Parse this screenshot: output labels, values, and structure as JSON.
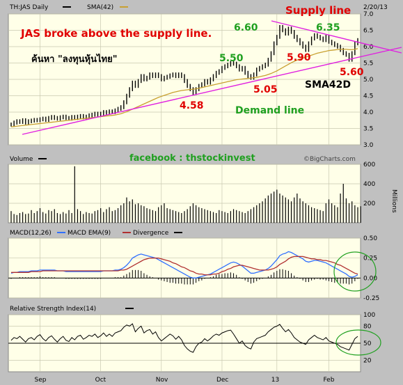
{
  "header": {
    "symbol_label": "TH:JAS Daily",
    "sma_label": "SMA(42)",
    "date": "2/20/13",
    "source": "©BigCharts.com"
  },
  "annotations": {
    "headline": "JAS broke above the supply line.",
    "search_text": "ค้นหา \"ลงทุนหุ้นไทย\"",
    "supply_line": "Supply line",
    "demand_line": "Demand line",
    "sma_note": "SMA42D",
    "facebook": "facebook : thstockinvest",
    "price_labels": [
      "4.58",
      "5.50",
      "5.05",
      "6.60",
      "5.90",
      "6.35",
      "5.60"
    ]
  },
  "colors": {
    "price_bar": "#000000",
    "sma_line": "#c8a030",
    "trend_line": "#e020e0",
    "macd_line": "#3070ff",
    "macd_ema": "#b03030",
    "annotation_red": "#e00000",
    "annotation_green": "#20a020",
    "panel_bg": "#ffffe8"
  },
  "chart_data": [
    {
      "type": "ohlc",
      "name": "price",
      "ylim": [
        3.0,
        7.0
      ],
      "yticks": [
        "7.0",
        "6.5",
        "6.0",
        "5.5",
        "5.0",
        "4.5",
        "4.0",
        "3.5",
        "3.0"
      ],
      "x_labels": [
        "Sep",
        "Oct",
        "Nov",
        "Dec",
        "13",
        "Feb"
      ],
      "close": [
        3.62,
        3.68,
        3.72,
        3.7,
        3.75,
        3.68,
        3.72,
        3.74,
        3.76,
        3.75,
        3.78,
        3.8,
        3.76,
        3.82,
        3.85,
        3.82,
        3.8,
        3.84,
        3.86,
        3.82,
        3.8,
        3.85,
        3.82,
        3.86,
        3.88,
        3.84,
        3.86,
        3.9,
        3.92,
        3.95,
        3.92,
        3.95,
        4.0,
        3.98,
        4.02,
        4.0,
        4.05,
        4.1,
        4.15,
        4.3,
        4.5,
        4.7,
        4.9,
        4.8,
        4.95,
        5.1,
        5.0,
        5.05,
        5.15,
        5.1,
        5.15,
        5.1,
        5.0,
        5.05,
        5.08,
        5.12,
        5.15,
        5.1,
        5.15,
        5.1,
        4.95,
        4.8,
        4.7,
        4.58,
        4.7,
        4.8,
        4.85,
        4.95,
        4.9,
        5.0,
        5.1,
        5.2,
        5.25,
        5.35,
        5.4,
        5.45,
        5.5,
        5.48,
        5.4,
        5.3,
        5.35,
        5.2,
        5.1,
        5.05,
        5.15,
        5.3,
        5.35,
        5.4,
        5.45,
        5.6,
        5.8,
        6.1,
        6.3,
        6.6,
        6.5,
        6.4,
        6.55,
        6.45,
        6.3,
        6.2,
        6.1,
        6.0,
        5.9,
        6.1,
        6.25,
        6.35,
        6.3,
        6.25,
        6.2,
        6.3,
        6.15,
        6.1,
        6.05,
        6.0,
        5.9,
        5.8,
        5.75,
        5.6,
        5.8,
        6.1,
        6.2
      ],
      "sma42": [
        3.55,
        3.56,
        3.57,
        3.58,
        3.59,
        3.6,
        3.61,
        3.62,
        3.63,
        3.64,
        3.65,
        3.66,
        3.67,
        3.68,
        3.69,
        3.7,
        3.71,
        3.72,
        3.73,
        3.74,
        3.75,
        3.76,
        3.77,
        3.78,
        3.79,
        3.8,
        3.81,
        3.82,
        3.83,
        3.84,
        3.85,
        3.86,
        3.87,
        3.88,
        3.89,
        3.9,
        3.91,
        3.93,
        3.95,
        3.98,
        4.01,
        4.05,
        4.09,
        4.13,
        4.17,
        4.21,
        4.25,
        4.29,
        4.33,
        4.37,
        4.41,
        4.45,
        4.48,
        4.51,
        4.54,
        4.57,
        4.6,
        4.62,
        4.64,
        4.66,
        4.67,
        4.68,
        4.69,
        4.7,
        4.71,
        4.73,
        4.75,
        4.77,
        4.79,
        4.81,
        4.83,
        4.85,
        4.87,
        4.89,
        4.91,
        4.93,
        4.95,
        4.97,
        4.99,
        5.0,
        5.01,
        5.02,
        5.03,
        5.04,
        5.05,
        5.06,
        5.08,
        5.1,
        5.12,
        5.15,
        5.18,
        5.22,
        5.26,
        5.31,
        5.36,
        5.41,
        5.46,
        5.51,
        5.55,
        5.59,
        5.62,
        5.65,
        5.68,
        5.71,
        5.74,
        5.77,
        5.8,
        5.82,
        5.84,
        5.86,
        5.88,
        5.89,
        5.9,
        5.91,
        5.92,
        5.92,
        5.92,
        5.91,
        5.91,
        5.92,
        5.94
      ]
    },
    {
      "type": "bar",
      "name": "Volume",
      "ylabel": "Millions",
      "ylim": [
        0,
        600
      ],
      "yticks": [
        "600",
        "400",
        "200"
      ],
      "values": [
        120,
        90,
        80,
        100,
        110,
        90,
        95,
        130,
        100,
        120,
        150,
        110,
        95,
        130,
        120,
        140,
        100,
        90,
        110,
        95,
        130,
        100,
        580,
        140,
        120,
        90,
        110,
        100,
        95,
        120,
        130,
        150,
        110,
        140,
        160,
        120,
        130,
        150,
        180,
        200,
        260,
        220,
        240,
        190,
        200,
        180,
        170,
        150,
        140,
        130,
        120,
        160,
        180,
        200,
        150,
        140,
        130,
        120,
        110,
        100,
        120,
        140,
        170,
        200,
        180,
        160,
        150,
        140,
        130,
        120,
        110,
        100,
        130,
        120,
        110,
        100,
        120,
        140,
        130,
        120,
        110,
        100,
        120,
        140,
        160,
        180,
        200,
        220,
        250,
        280,
        300,
        320,
        340,
        300,
        280,
        260,
        240,
        220,
        260,
        300,
        250,
        220,
        200,
        180,
        160,
        150,
        140,
        130,
        120,
        200,
        240,
        200,
        180,
        160,
        300,
        400,
        250,
        200,
        220,
        180,
        160,
        170
      ]
    },
    {
      "type": "line",
      "name": "MACD",
      "legend": [
        "MACD(12,26)",
        "MACD EMA(9)",
        "Divergence"
      ],
      "ylim": [
        -0.25,
        0.5
      ],
      "yticks": [
        "0.50",
        "0.25",
        "0.00",
        "-0.25"
      ],
      "macd": [
        0.06,
        0.07,
        0.07,
        0.08,
        0.08,
        0.08,
        0.08,
        0.09,
        0.09,
        0.09,
        0.1,
        0.1,
        0.1,
        0.1,
        0.1,
        0.1,
        0.09,
        0.09,
        0.09,
        0.08,
        0.08,
        0.08,
        0.08,
        0.08,
        0.08,
        0.08,
        0.08,
        0.08,
        0.08,
        0.08,
        0.08,
        0.08,
        0.09,
        0.09,
        0.09,
        0.09,
        0.1,
        0.1,
        0.11,
        0.13,
        0.16,
        0.2,
        0.25,
        0.27,
        0.29,
        0.3,
        0.29,
        0.28,
        0.27,
        0.26,
        0.25,
        0.23,
        0.21,
        0.19,
        0.17,
        0.15,
        0.13,
        0.11,
        0.09,
        0.07,
        0.05,
        0.03,
        0.01,
        0.0,
        0.0,
        0.01,
        0.02,
        0.03,
        0.04,
        0.05,
        0.07,
        0.09,
        0.11,
        0.13,
        0.15,
        0.17,
        0.19,
        0.2,
        0.19,
        0.17,
        0.15,
        0.12,
        0.09,
        0.06,
        0.06,
        0.07,
        0.08,
        0.09,
        0.1,
        0.12,
        0.15,
        0.19,
        0.23,
        0.28,
        0.3,
        0.31,
        0.33,
        0.32,
        0.3,
        0.28,
        0.26,
        0.24,
        0.21,
        0.2,
        0.21,
        0.22,
        0.22,
        0.21,
        0.2,
        0.19,
        0.17,
        0.15,
        0.13,
        0.11,
        0.09,
        0.07,
        0.05,
        0.02,
        0.01,
        0.02,
        0.04
      ],
      "signal": [
        0.07,
        0.07,
        0.07,
        0.07,
        0.07,
        0.07,
        0.07,
        0.08,
        0.08,
        0.08,
        0.08,
        0.09,
        0.09,
        0.09,
        0.09,
        0.09,
        0.09,
        0.09,
        0.09,
        0.09,
        0.09,
        0.09,
        0.09,
        0.09,
        0.09,
        0.09,
        0.09,
        0.09,
        0.09,
        0.09,
        0.09,
        0.09,
        0.09,
        0.09,
        0.09,
        0.09,
        0.09,
        0.09,
        0.1,
        0.1,
        0.11,
        0.13,
        0.15,
        0.17,
        0.19,
        0.21,
        0.23,
        0.24,
        0.25,
        0.25,
        0.25,
        0.25,
        0.24,
        0.23,
        0.22,
        0.21,
        0.19,
        0.18,
        0.16,
        0.14,
        0.13,
        0.11,
        0.09,
        0.08,
        0.06,
        0.05,
        0.05,
        0.04,
        0.04,
        0.04,
        0.05,
        0.05,
        0.06,
        0.08,
        0.09,
        0.11,
        0.12,
        0.14,
        0.15,
        0.16,
        0.16,
        0.15,
        0.14,
        0.13,
        0.12,
        0.11,
        0.1,
        0.1,
        0.1,
        0.1,
        0.11,
        0.12,
        0.14,
        0.17,
        0.19,
        0.21,
        0.24,
        0.26,
        0.27,
        0.27,
        0.27,
        0.27,
        0.26,
        0.25,
        0.24,
        0.24,
        0.23,
        0.23,
        0.22,
        0.22,
        0.21,
        0.2,
        0.19,
        0.17,
        0.16,
        0.14,
        0.12,
        0.1,
        0.08,
        0.06,
        0.05
      ]
    },
    {
      "type": "line",
      "name": "RSI",
      "legend": "Relative Strength Index(14)",
      "ylim": [
        0,
        100
      ],
      "yticks": [
        "100",
        "80",
        "50",
        "20"
      ],
      "values": [
        55,
        60,
        58,
        62,
        57,
        52,
        58,
        60,
        56,
        62,
        65,
        58,
        54,
        60,
        63,
        57,
        52,
        58,
        62,
        55,
        53,
        60,
        56,
        62,
        64,
        57,
        60,
        64,
        62,
        66,
        60,
        63,
        68,
        62,
        66,
        62,
        68,
        70,
        72,
        78,
        82,
        80,
        84,
        70,
        76,
        80,
        68,
        72,
        74,
        66,
        70,
        60,
        54,
        58,
        62,
        66,
        63,
        57,
        62,
        56,
        46,
        40,
        36,
        34,
        44,
        50,
        52,
        58,
        54,
        58,
        63,
        66,
        64,
        68,
        70,
        72,
        73,
        66,
        58,
        50,
        54,
        46,
        42,
        40,
        52,
        58,
        60,
        62,
        64,
        70,
        74,
        78,
        80,
        83,
        76,
        70,
        74,
        68,
        60,
        56,
        52,
        50,
        48,
        56,
        60,
        64,
        60,
        58,
        56,
        60,
        54,
        52,
        50,
        48,
        44,
        42,
        40,
        38,
        48,
        58,
        62
      ]
    }
  ]
}
